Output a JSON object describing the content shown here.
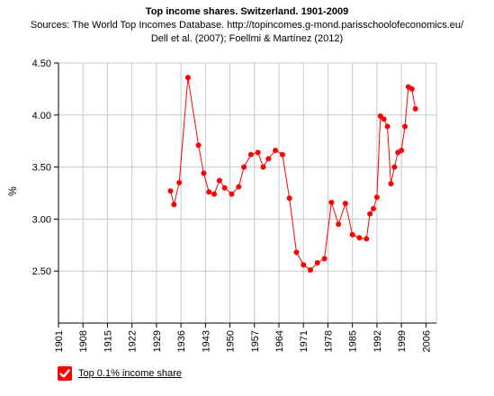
{
  "chart_data": {
    "type": "line",
    "title": "Top income shares. Switzerland. 1901-2009",
    "subtitle": [
      "Sources: The World Top Incomes Database. http://topincomes.g-mond.parisschoolofeconomics.eu/",
      "Dell et al. (2007); Foellmi & Martínez (2012)"
    ],
    "ylabel": "%",
    "xlabel": "",
    "xlim": [
      1901,
      2009
    ],
    "ylim": [
      2.0,
      4.5
    ],
    "x_ticks": [
      "1901",
      "1908",
      "1915",
      "1922",
      "1929",
      "1936",
      "1943",
      "1950",
      "1957",
      "1964",
      "1971",
      "1978",
      "1985",
      "1992",
      "1999",
      "2006"
    ],
    "y_ticks": [
      "2.50",
      "3.00",
      "3.50",
      "4.00",
      "4.50"
    ],
    "grid": true,
    "legend_position": "bottom-left",
    "series": [
      {
        "name": "Top 0.1% income share",
        "color": "#ff0000",
        "points": [
          [
            1933,
            3.27
          ],
          [
            1934,
            3.14
          ],
          [
            1935.5,
            3.35
          ],
          [
            1938,
            4.36
          ],
          [
            1941,
            3.71
          ],
          [
            1942.5,
            3.44
          ],
          [
            1944,
            3.26
          ],
          [
            1945.5,
            3.24
          ],
          [
            1947,
            3.37
          ],
          [
            1948.5,
            3.3
          ],
          [
            1950.5,
            3.24
          ],
          [
            1952.5,
            3.31
          ],
          [
            1954,
            3.5
          ],
          [
            1956,
            3.62
          ],
          [
            1958,
            3.64
          ],
          [
            1959.5,
            3.5
          ],
          [
            1961,
            3.58
          ],
          [
            1963,
            3.66
          ],
          [
            1965,
            3.62
          ],
          [
            1967,
            3.2
          ],
          [
            1969,
            2.68
          ],
          [
            1971,
            2.56
          ],
          [
            1973,
            2.51
          ],
          [
            1975,
            2.58
          ],
          [
            1977,
            2.62
          ],
          [
            1979,
            3.16
          ],
          [
            1981,
            2.95
          ],
          [
            1983,
            3.15
          ],
          [
            1985,
            2.85
          ],
          [
            1987,
            2.82
          ],
          [
            1989,
            2.81
          ],
          [
            1990,
            3.05
          ],
          [
            1991,
            3.1
          ],
          [
            1992,
            3.21
          ],
          [
            1993,
            3.99
          ],
          [
            1994,
            3.96
          ],
          [
            1995,
            3.89
          ],
          [
            1996,
            3.34
          ],
          [
            1997,
            3.5
          ],
          [
            1998,
            3.64
          ],
          [
            1999,
            3.66
          ],
          [
            2000,
            3.89
          ],
          [
            2001,
            4.27
          ],
          [
            2002,
            4.25
          ],
          [
            2003,
            4.06
          ]
        ]
      }
    ]
  }
}
